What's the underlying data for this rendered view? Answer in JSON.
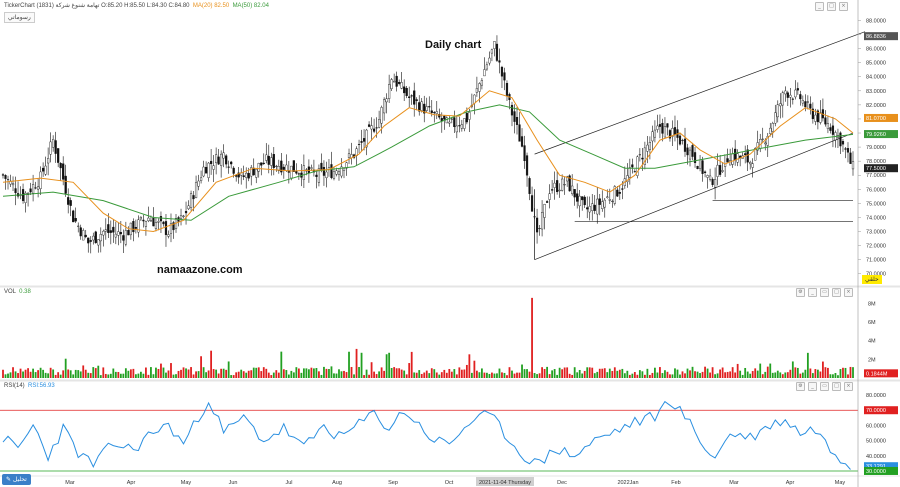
{
  "header": {
    "title": "TickerChart  تهامة شنوغ شركة (1831)  O:85.20  H:85.50  L:84.30  C:84.80",
    "ma20_label": "MA(20)  82.50",
    "ma50_label": "MA(50)  82.04",
    "tool_label": "رسوماتي"
  },
  "annotation": {
    "daily": "Daily chart",
    "site": "namaazone.com"
  },
  "volume_panel": {
    "label": "VOL",
    "value": "0.38"
  },
  "rsi_panel": {
    "label": "RSI(14)",
    "value": "RSI:56.93"
  },
  "bottom_btn": "تحليل",
  "yellow_tag": "حلقي",
  "colors": {
    "up": "#22a022",
    "down": "#e02020",
    "ma20": "#e8901c",
    "ma50": "#3a9a3a",
    "rsi": "#2a8fe0",
    "rsi_upper": "#e02020",
    "rsi_lower": "#22a022"
  },
  "price_tags": [
    {
      "text": "86.8836",
      "color": "#555555",
      "y": 86.8836
    },
    {
      "text": "81.0700",
      "color": "#e8901c",
      "y": 81.07
    },
    {
      "text": "79.9260",
      "color": "#3a9a3a",
      "y": 79.926
    },
    {
      "text": "77.5000",
      "color": "#222222",
      "y": 77.5
    }
  ],
  "volume_tag": {
    "text": "0.1844M",
    "color": "#e02020"
  },
  "rsi_tags": [
    {
      "text": "70.0000",
      "color": "#e02020",
      "y": 70
    },
    {
      "text": "33.1291",
      "color": "#2a8fe0",
      "y": 33.1291
    },
    {
      "text": "30.0000",
      "color": "#22a022",
      "y": 30
    }
  ],
  "chart_data": {
    "type": "candlestick",
    "title": "Daily chart",
    "price_axis": {
      "ticks": [
        "88.0000",
        "87.0000",
        "86.0000",
        "85.0000",
        "84.0000",
        "83.0000",
        "82.0000",
        "81.0000",
        "80.0000",
        "79.0000",
        "78.0000",
        "77.0000",
        "76.0000",
        "75.0000",
        "74.0000",
        "73.0000",
        "72.0000",
        "71.0000",
        "70.0000"
      ],
      "ylim": [
        69.2,
        88.6
      ]
    },
    "volume_axis": {
      "ticks": [
        "8M",
        "6M",
        "4M",
        "2M"
      ],
      "ylim": [
        0,
        8.8
      ]
    },
    "rsi_axis": {
      "ticks": [
        "80.0000",
        "70.0000",
        "60.0000",
        "50.0000",
        "40.0000",
        "30.0000"
      ],
      "ylim": [
        28,
        82
      ]
    },
    "x_axis": {
      "labels": [
        "Mar",
        "Apr",
        "May",
        "Jun",
        "Jul",
        "Aug",
        "Sep",
        "Oct",
        "2021-11-04 Thursday",
        "Dec",
        "2022Jan",
        "Feb",
        "Mar",
        "Apr",
        "May"
      ],
      "positions": [
        20,
        44,
        65,
        87,
        109,
        130,
        152,
        174,
        196,
        218,
        240,
        262,
        284,
        306,
        328
      ]
    },
    "bars": 340,
    "close_path": [
      [
        0,
        77.0
      ],
      [
        8,
        75.5
      ],
      [
        15,
        76.8
      ],
      [
        20,
        79.5
      ],
      [
        28,
        74.0
      ],
      [
        34,
        72.2
      ],
      [
        40,
        73.0
      ],
      [
        48,
        72.8
      ],
      [
        58,
        74.0
      ],
      [
        66,
        73.0
      ],
      [
        72,
        74.0
      ],
      [
        80,
        77.5
      ],
      [
        88,
        78.5
      ],
      [
        95,
        76.8
      ],
      [
        105,
        78.0
      ],
      [
        115,
        77.5
      ],
      [
        125,
        77.0
      ],
      [
        132,
        77.3
      ],
      [
        140,
        78.5
      ],
      [
        150,
        81.0
      ],
      [
        155,
        84.0
      ],
      [
        162,
        82.5
      ],
      [
        170,
        81.5
      ],
      [
        178,
        80.5
      ],
      [
        185,
        81.0
      ],
      [
        192,
        84.5
      ],
      [
        196,
        86.2
      ],
      [
        202,
        82.0
      ],
      [
        208,
        78.5
      ],
      [
        213,
        72.5
      ],
      [
        218,
        76.0
      ],
      [
        225,
        76.5
      ],
      [
        232,
        74.5
      ],
      [
        238,
        75.0
      ],
      [
        246,
        76.0
      ],
      [
        255,
        78.5
      ],
      [
        262,
        80.5
      ],
      [
        270,
        79.5
      ],
      [
        275,
        78.5
      ],
      [
        282,
        76.5
      ],
      [
        290,
        78.5
      ],
      [
        298,
        78.0
      ],
      [
        305,
        80.0
      ],
      [
        312,
        83.0
      ],
      [
        318,
        82.5
      ],
      [
        322,
        81.5
      ],
      [
        326,
        81.0
      ],
      [
        330,
        80.5
      ],
      [
        334,
        79.5
      ],
      [
        339,
        77.5
      ]
    ],
    "ma20_path": [
      [
        0,
        76.5
      ],
      [
        15,
        76.8
      ],
      [
        28,
        76.5
      ],
      [
        40,
        74.3
      ],
      [
        50,
        73.2
      ],
      [
        60,
        73.0
      ],
      [
        72,
        73.8
      ],
      [
        85,
        76.5
      ],
      [
        100,
        77.5
      ],
      [
        115,
        77.3
      ],
      [
        130,
        77.4
      ],
      [
        142,
        78.5
      ],
      [
        152,
        80.5
      ],
      [
        162,
        81.8
      ],
      [
        172,
        81.3
      ],
      [
        182,
        81.2
      ],
      [
        194,
        83.0
      ],
      [
        203,
        82.5
      ],
      [
        213,
        79.5
      ],
      [
        222,
        77.0
      ],
      [
        232,
        76.5
      ],
      [
        242,
        75.8
      ],
      [
        252,
        77.0
      ],
      [
        262,
        79.5
      ],
      [
        270,
        80.0
      ],
      [
        278,
        78.8
      ],
      [
        288,
        77.8
      ],
      [
        298,
        78.5
      ],
      [
        310,
        80.5
      ],
      [
        320,
        81.8
      ],
      [
        332,
        81.0
      ],
      [
        339,
        80.0
      ]
    ],
    "ma50_path": [
      [
        0,
        75.5
      ],
      [
        20,
        75.8
      ],
      [
        40,
        75.2
      ],
      [
        60,
        74.0
      ],
      [
        75,
        73.8
      ],
      [
        90,
        75.5
      ],
      [
        110,
        76.5
      ],
      [
        125,
        77.3
      ],
      [
        140,
        77.6
      ],
      [
        155,
        79.0
      ],
      [
        170,
        80.5
      ],
      [
        185,
        81.5
      ],
      [
        198,
        82.0
      ],
      [
        210,
        81.5
      ],
      [
        222,
        79.5
      ],
      [
        235,
        78.5
      ],
      [
        248,
        77.5
      ],
      [
        260,
        77.5
      ],
      [
        275,
        78.0
      ],
      [
        290,
        78.5
      ],
      [
        305,
        79.0
      ],
      [
        320,
        79.5
      ],
      [
        339,
        79.9
      ]
    ],
    "channel_lines": [
      {
        "from": [
          212,
          71.0
        ],
        "to": [
          339,
          80.0
        ]
      },
      {
        "from": [
          212,
          78.5
        ],
        "to": [
          339,
          87.2
        ]
      }
    ],
    "support_lines": [
      {
        "from": [
          283,
          75.2
        ],
        "to": [
          339,
          75.2
        ]
      },
      {
        "from": [
          228,
          73.7
        ],
        "to": [
          339,
          73.7
        ]
      }
    ],
    "rsi_path": [
      [
        0,
        52
      ],
      [
        6,
        44
      ],
      [
        12,
        60
      ],
      [
        18,
        40
      ],
      [
        24,
        58
      ],
      [
        30,
        42
      ],
      [
        36,
        34
      ],
      [
        44,
        48
      ],
      [
        52,
        44
      ],
      [
        60,
        56
      ],
      [
        66,
        60
      ],
      [
        72,
        48
      ],
      [
        78,
        65
      ],
      [
        82,
        78
      ],
      [
        88,
        55
      ],
      [
        96,
        65
      ],
      [
        104,
        50
      ],
      [
        112,
        58
      ],
      [
        120,
        45
      ],
      [
        128,
        60
      ],
      [
        134,
        52
      ],
      [
        140,
        58
      ],
      [
        148,
        68
      ],
      [
        154,
        58
      ],
      [
        160,
        70
      ],
      [
        166,
        60
      ],
      [
        172,
        50
      ],
      [
        178,
        48
      ],
      [
        186,
        62
      ],
      [
        194,
        67
      ],
      [
        200,
        55
      ],
      [
        206,
        42
      ],
      [
        214,
        34
      ],
      [
        220,
        45
      ],
      [
        228,
        40
      ],
      [
        236,
        50
      ],
      [
        244,
        56
      ],
      [
        252,
        62
      ],
      [
        260,
        66
      ],
      [
        266,
        77
      ],
      [
        272,
        66
      ],
      [
        278,
        50
      ],
      [
        284,
        38
      ],
      [
        290,
        55
      ],
      [
        298,
        52
      ],
      [
        306,
        60
      ],
      [
        312,
        64
      ],
      [
        318,
        55
      ],
      [
        324,
        58
      ],
      [
        330,
        44
      ],
      [
        339,
        33
      ]
    ]
  }
}
